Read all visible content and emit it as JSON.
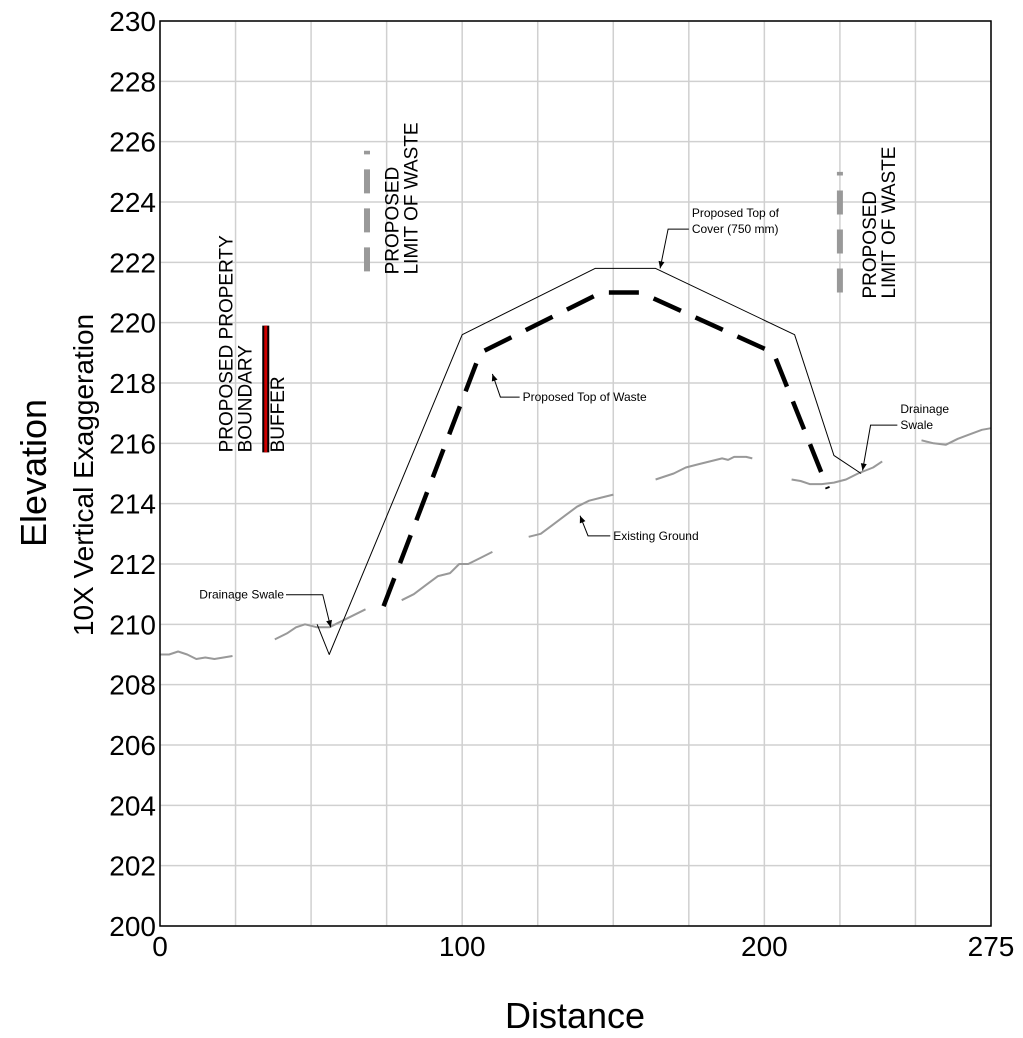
{
  "chart_data": {
    "type": "line",
    "xlabel": "Distance",
    "ylabel": "Elevation",
    "ylabel2": "10X Vertical Exaggeration",
    "xlim": [
      0,
      275
    ],
    "ylim": [
      200,
      230
    ],
    "x_tick_labels": [
      "0",
      "100",
      "200",
      "275"
    ],
    "x_tick_values": [
      0,
      100,
      200,
      275
    ],
    "y_tick_values": [
      200,
      202,
      204,
      206,
      208,
      210,
      212,
      214,
      216,
      218,
      220,
      222,
      224,
      226,
      228,
      230
    ],
    "y_tick_labels": [
      "200",
      "202",
      "204",
      "206",
      "208",
      "210",
      "212",
      "214",
      "216",
      "218",
      "220",
      "222",
      "224",
      "226",
      "228",
      "230"
    ],
    "x_gridlines": [
      0,
      25,
      50,
      75,
      100,
      125,
      150,
      175,
      200,
      225,
      250,
      275
    ],
    "y_gridlines": [
      200,
      202,
      204,
      206,
      208,
      210,
      212,
      214,
      216,
      218,
      220,
      222,
      224,
      226,
      228,
      230
    ],
    "grid": true,
    "colors": {
      "existing_ground": "#999999",
      "cover": "#000000",
      "waste": "#000000",
      "limit_marker": "#999999",
      "buffer": "#cc0000",
      "grid": "#d0d0d0"
    },
    "series": [
      {
        "style": "grey-solid",
        "segments": [
          [
            [
              0,
              209.0
            ],
            [
              3,
              209.0
            ],
            [
              6,
              209.1
            ],
            [
              9,
              209.0
            ],
            [
              12,
              208.85
            ],
            [
              15,
              208.9
            ],
            [
              18,
              208.85
            ],
            [
              21,
              208.9
            ],
            [
              24,
              208.95
            ]
          ],
          [
            [
              38,
              209.5
            ],
            [
              42,
              209.7
            ],
            [
              45,
              209.9
            ],
            [
              48,
              210.0
            ],
            [
              52,
              209.9
            ],
            [
              56,
              209.9
            ],
            [
              60,
              210.1
            ],
            [
              64,
              210.3
            ],
            [
              68,
              210.5
            ]
          ],
          [
            [
              80,
              210.8
            ],
            [
              84,
              211.0
            ],
            [
              88,
              211.3
            ],
            [
              92,
              211.6
            ],
            [
              96,
              211.7
            ],
            [
              99,
              212.0
            ],
            [
              102,
              212.0
            ],
            [
              106,
              212.2
            ],
            [
              110,
              212.4
            ]
          ],
          [
            [
              122,
              212.9
            ],
            [
              126,
              213.0
            ],
            [
              130,
              213.3
            ],
            [
              134,
              213.6
            ],
            [
              138,
              213.9
            ],
            [
              142,
              214.1
            ],
            [
              146,
              214.2
            ],
            [
              150,
              214.3
            ]
          ],
          [
            [
              164,
              214.8
            ],
            [
              167,
              214.9
            ],
            [
              170,
              215.0
            ],
            [
              174,
              215.2
            ],
            [
              178,
              215.3
            ],
            [
              182,
              215.4
            ],
            [
              186,
              215.5
            ],
            [
              188,
              215.45
            ],
            [
              190,
              215.55
            ],
            [
              194,
              215.55
            ],
            [
              196,
              215.5
            ]
          ],
          [
            [
              209,
              214.8
            ],
            [
              212,
              214.75
            ],
            [
              215,
              214.65
            ],
            [
              219,
              214.65
            ],
            [
              223,
              214.7
            ],
            [
              227,
              214.8
            ],
            [
              231,
              215.0
            ],
            [
              236,
              215.2
            ],
            [
              239,
              215.4
            ]
          ],
          [
            [
              252,
              216.1
            ],
            [
              256,
              216.0
            ],
            [
              260,
              215.95
            ],
            [
              264,
              216.15
            ],
            [
              268,
              216.3
            ],
            [
              272,
              216.45
            ],
            [
              275,
              216.5
            ]
          ]
        ]
      },
      {
        "style": "thin-black",
        "segments": [
          [
            [
              52,
              210.0
            ],
            [
              56,
              209.0
            ],
            [
              100,
              219.6
            ],
            [
              144,
              221.8
            ],
            [
              164,
              221.8
            ],
            [
              210,
              219.6
            ],
            [
              223,
              215.6
            ],
            [
              232,
              215.0
            ]
          ]
        ]
      },
      {
        "style": "dashed-black",
        "segments": [
          [
            [
              74,
              210.6
            ],
            [
              106,
              219.0
            ],
            [
              146,
              221.0
            ],
            [
              159,
              221.0
            ],
            [
              203,
              219.0
            ],
            [
              221,
              214.5
            ]
          ]
        ]
      }
    ],
    "annotations": [
      {
        "text": "Proposed Top of",
        "line2": "Cover (750 mm)",
        "x": 176,
        "y": 223.5,
        "arrow_to": [
          165.5,
          221.8
        ]
      },
      {
        "text": "Proposed Top of Waste",
        "x": 120,
        "y": 217.4,
        "arrow_to": [
          110,
          218.3
        ]
      },
      {
        "text": "Drainage",
        "line2": "Swale",
        "x": 245,
        "y": 217.0,
        "arrow_to": [
          232.5,
          215.1
        ]
      },
      {
        "text": "Drainage Swale",
        "x": 13,
        "y": 210.85,
        "arrow_to": [
          56.5,
          209.9
        ]
      },
      {
        "text": "Existing Ground",
        "x": 150,
        "y": 212.8,
        "arrow_to": [
          139,
          213.6
        ]
      }
    ],
    "vertical_labels": [
      {
        "lines": [
          "PROPOSED PROPERTY",
          "BOUNDARY"
        ],
        "x": 24,
        "y": 215.7
      },
      {
        "lines": [
          "BUFFER"
        ],
        "x": 41,
        "y": 215.7
      },
      {
        "lines": [
          "PROPOSED",
          "LIMIT OF WASTE"
        ],
        "x": 79,
        "y": 221.6
      },
      {
        "lines": [
          "PROPOSED",
          "LIMIT OF WASTE"
        ],
        "x": 237,
        "y": 220.8
      }
    ],
    "markers": [
      {
        "type": "limit",
        "x": 68.5,
        "y_range": [
          221.7,
          225.7
        ]
      },
      {
        "type": "limit",
        "x": 225,
        "y_range": [
          221.0,
          225.0
        ]
      },
      {
        "type": "buffer",
        "x": 35,
        "y_range": [
          215.7,
          219.9
        ]
      }
    ]
  }
}
